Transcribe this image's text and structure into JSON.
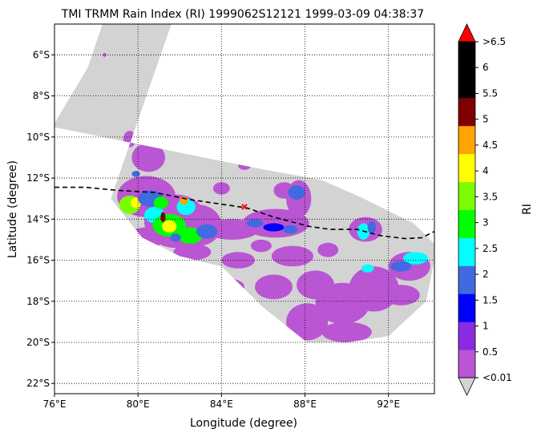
{
  "chart_data": {
    "type": "heatmap",
    "title": "TMI TRMM Rain Index (RI) 1999062S12121 1999-03-09 04:38:37",
    "xlabel": "Longitude (degree)",
    "ylabel": "Latitude (degree)",
    "xlim": [
      76,
      94.2
    ],
    "ylim": [
      -22.5,
      -4.5
    ],
    "grid": true,
    "x_ticks": [
      {
        "value": 76,
        "label": "76°E"
      },
      {
        "value": 80,
        "label": "80°E"
      },
      {
        "value": 84,
        "label": "84°E"
      },
      {
        "value": 88,
        "label": "88°E"
      },
      {
        "value": 92,
        "label": "92°E"
      }
    ],
    "y_ticks": [
      {
        "value": -6,
        "label": "6°S"
      },
      {
        "value": -8,
        "label": "8°S"
      },
      {
        "value": -10,
        "label": "10°S"
      },
      {
        "value": -12,
        "label": "12°S"
      },
      {
        "value": -14,
        "label": "14°S"
      },
      {
        "value": -16,
        "label": "16°S"
      },
      {
        "value": -18,
        "label": "18°S"
      },
      {
        "value": -20,
        "label": "20°S"
      },
      {
        "value": -22,
        "label": "22°S"
      }
    ],
    "swath_polygon": [
      [
        78.3,
        -4.5
      ],
      [
        77.6,
        -6.6
      ],
      [
        75.9,
        -9.5
      ],
      [
        85.6,
        -11.5
      ],
      [
        88.8,
        -12.1
      ],
      [
        90.6,
        -12.9
      ],
      [
        93.2,
        -14.2
      ],
      [
        94.2,
        -15.2
      ],
      [
        94.2,
        -16.0
      ],
      [
        93.8,
        -18.0
      ],
      [
        92.0,
        -19.7
      ],
      [
        90.0,
        -20.0
      ],
      [
        88.1,
        -20.0
      ],
      [
        86.0,
        -18.3
      ],
      [
        84.0,
        -16.3
      ],
      [
        82.0,
        -15.8
      ],
      [
        80.2,
        -14.9
      ],
      [
        78.7,
        -13.0
      ],
      [
        81.6,
        -4.5
      ]
    ],
    "swath_color": "#d3d3d3",
    "track": {
      "style": "dashed",
      "color": "#000000",
      "points": [
        [
          76.0,
          -12.45
        ],
        [
          77.5,
          -12.45
        ],
        [
          79.0,
          -12.6
        ],
        [
          80.8,
          -12.7
        ],
        [
          82.5,
          -13.05
        ],
        [
          84.2,
          -13.3
        ],
        [
          85.2,
          -13.45
        ],
        [
          86.5,
          -13.9
        ],
        [
          88.2,
          -14.35
        ],
        [
          89.2,
          -14.5
        ],
        [
          90.5,
          -14.5
        ],
        [
          91.6,
          -14.8
        ],
        [
          92.8,
          -14.95
        ],
        [
          93.6,
          -14.9
        ],
        [
          94.2,
          -14.6
        ]
      ]
    },
    "storm_center": {
      "lon": 85.1,
      "lat": -13.4,
      "color": "#ff0000"
    },
    "rain_cells": [
      {
        "lon": 79.6,
        "lat": -13.3,
        "rx": 0.5,
        "ry": 0.45,
        "level": 6
      },
      {
        "lon": 79.9,
        "lat": -13.2,
        "rx": 0.25,
        "ry": 0.25,
        "level": 7
      },
      {
        "lon": 80.6,
        "lat": -13.0,
        "rx": 0.6,
        "ry": 0.4,
        "level": 3
      },
      {
        "lon": 80.8,
        "lat": -13.8,
        "rx": 0.5,
        "ry": 0.4,
        "level": 4
      },
      {
        "lon": 81.1,
        "lat": -13.2,
        "rx": 0.35,
        "ry": 0.3,
        "level": 5
      },
      {
        "lon": 81.5,
        "lat": -14.3,
        "rx": 0.8,
        "ry": 0.55,
        "level": 5
      },
      {
        "lon": 81.5,
        "lat": -14.35,
        "rx": 0.35,
        "ry": 0.3,
        "level": 7
      },
      {
        "lon": 82.3,
        "lat": -13.4,
        "rx": 0.45,
        "ry": 0.4,
        "level": 4
      },
      {
        "lon": 82.5,
        "lat": -14.8,
        "rx": 0.6,
        "ry": 0.4,
        "level": 5
      },
      {
        "lon": 81.2,
        "lat": -13.9,
        "rx": 0.12,
        "ry": 0.25,
        "level": 9
      },
      {
        "lon": 82.2,
        "lat": -13.1,
        "rx": 0.2,
        "ry": 0.2,
        "level": 8
      },
      {
        "lon": 81.8,
        "lat": -14.9,
        "rx": 0.25,
        "ry": 0.2,
        "level": 3
      },
      {
        "lon": 83.3,
        "lat": -14.6,
        "rx": 0.5,
        "ry": 0.35,
        "level": 3
      },
      {
        "lon": 87.6,
        "lat": -12.7,
        "rx": 0.4,
        "ry": 0.35,
        "level": 3
      },
      {
        "lon": 85.6,
        "lat": -14.2,
        "rx": 0.4,
        "ry": 0.2,
        "level": 3
      },
      {
        "lon": 86.5,
        "lat": -14.4,
        "rx": 0.5,
        "ry": 0.2,
        "level": 2
      },
      {
        "lon": 90.8,
        "lat": -14.6,
        "rx": 0.3,
        "ry": 0.4,
        "level": 4
      },
      {
        "lon": 91.2,
        "lat": -14.4,
        "rx": 0.2,
        "ry": 0.3,
        "level": 3
      },
      {
        "lon": 93.3,
        "lat": -15.9,
        "rx": 0.6,
        "ry": 0.3,
        "level": 4
      },
      {
        "lon": 92.6,
        "lat": -16.3,
        "rx": 0.5,
        "ry": 0.25,
        "level": 3
      },
      {
        "lon": 91.0,
        "lat": -16.4,
        "rx": 0.3,
        "ry": 0.2,
        "level": 4
      },
      {
        "lon": 78.4,
        "lat": -10.6,
        "rx": 0.25,
        "ry": 0.2,
        "level": 3
      },
      {
        "lon": 79.9,
        "lat": -11.8,
        "rx": 0.2,
        "ry": 0.15,
        "level": 3
      },
      {
        "lon": 87.3,
        "lat": -14.5,
        "rx": 0.35,
        "ry": 0.2,
        "level": 3
      }
    ],
    "rain_patches": [
      {
        "lon": 80.5,
        "lat": -11.0,
        "rx": 0.8,
        "ry": 0.7
      },
      {
        "lon": 79.6,
        "lat": -10.1,
        "rx": 0.3,
        "ry": 0.4
      },
      {
        "lon": 80.4,
        "lat": -12.9,
        "rx": 1.4,
        "ry": 1.0
      },
      {
        "lon": 81.8,
        "lat": -14.1,
        "rx": 1.5,
        "ry": 1.3
      },
      {
        "lon": 80.4,
        "lat": -14.9,
        "rx": 0.9,
        "ry": 0.5
      },
      {
        "lon": 82.9,
        "lat": -14.3,
        "rx": 1.1,
        "ry": 1.0
      },
      {
        "lon": 82.6,
        "lat": -15.6,
        "rx": 0.9,
        "ry": 0.4
      },
      {
        "lon": 84.5,
        "lat": -14.5,
        "rx": 1.3,
        "ry": 0.5
      },
      {
        "lon": 84.8,
        "lat": -16.0,
        "rx": 0.8,
        "ry": 0.4
      },
      {
        "lon": 87.0,
        "lat": -12.6,
        "rx": 0.5,
        "ry": 0.4
      },
      {
        "lon": 87.7,
        "lat": -13.0,
        "rx": 0.6,
        "ry": 0.9
      },
      {
        "lon": 86.6,
        "lat": -14.2,
        "rx": 1.6,
        "ry": 0.7
      },
      {
        "lon": 87.4,
        "lat": -15.8,
        "rx": 1.0,
        "ry": 0.5
      },
      {
        "lon": 86.5,
        "lat": -17.3,
        "rx": 0.9,
        "ry": 0.6
      },
      {
        "lon": 88.5,
        "lat": -17.2,
        "rx": 0.9,
        "ry": 0.7
      },
      {
        "lon": 88.1,
        "lat": -19.0,
        "rx": 1.0,
        "ry": 0.9
      },
      {
        "lon": 89.8,
        "lat": -18.1,
        "rx": 1.3,
        "ry": 1.0
      },
      {
        "lon": 90.0,
        "lat": -19.5,
        "rx": 1.2,
        "ry": 0.5
      },
      {
        "lon": 91.3,
        "lat": -17.4,
        "rx": 1.2,
        "ry": 1.1
      },
      {
        "lon": 93.0,
        "lat": -16.3,
        "rx": 1.0,
        "ry": 0.7
      },
      {
        "lon": 92.6,
        "lat": -17.7,
        "rx": 0.9,
        "ry": 0.5
      },
      {
        "lon": 90.9,
        "lat": -14.5,
        "rx": 0.8,
        "ry": 0.6
      },
      {
        "lon": 89.1,
        "lat": -15.5,
        "rx": 0.5,
        "ry": 0.35
      },
      {
        "lon": 86.5,
        "lat": -10.2,
        "rx": 0.2,
        "ry": 0.2
      },
      {
        "lon": 85.1,
        "lat": -11.4,
        "rx": 0.3,
        "ry": 0.2
      },
      {
        "lon": 78.4,
        "lat": -6.0,
        "rx": 0.08,
        "ry": 0.1
      },
      {
        "lon": 84.0,
        "lat": -12.5,
        "rx": 0.4,
        "ry": 0.3
      },
      {
        "lon": 84.4,
        "lat": -17.3,
        "rx": 0.7,
        "ry": 0.4
      },
      {
        "lon": 85.9,
        "lat": -15.3,
        "rx": 0.5,
        "ry": 0.3
      }
    ],
    "colorbar": {
      "label": "RI",
      "tick_labels": [
        "<0.01",
        "0.5",
        "1",
        "1.5",
        "2",
        "2.5",
        "3",
        "3.5",
        "4",
        "4.5",
        "5",
        "5.5",
        "6",
        ">6.5"
      ],
      "colors": [
        "#ba55d3",
        "#8a2be2",
        "#0000ff",
        "#4169e1",
        "#00ffff",
        "#00ff00",
        "#7cfc00",
        "#ffff00",
        "#ffa500",
        "#800000",
        "#000000",
        "#000000"
      ],
      "over_color": "#ff0000",
      "under_color": "#d3d3d3"
    }
  }
}
